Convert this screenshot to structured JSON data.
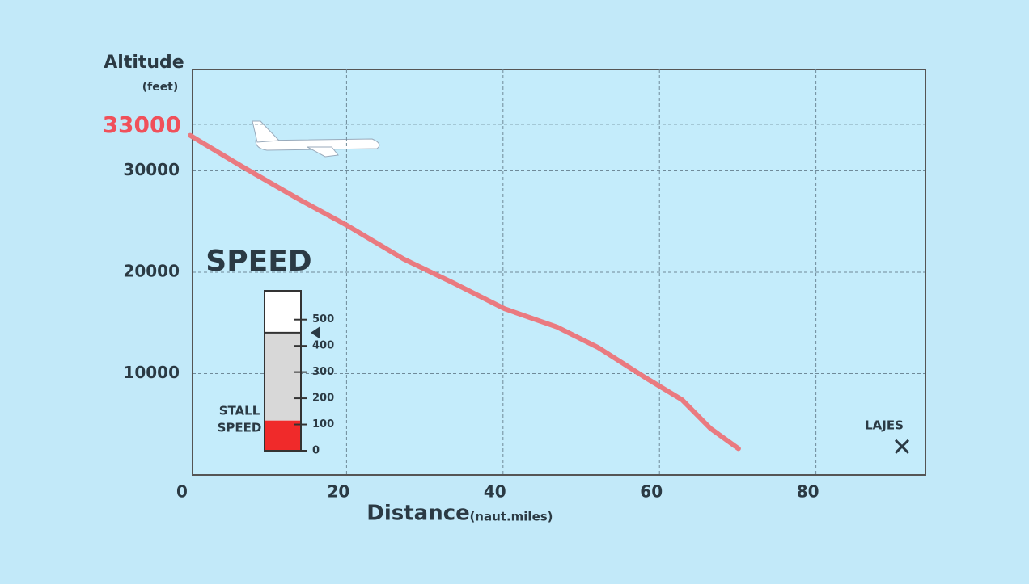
{
  "chart_data": {
    "type": "line",
    "y_label": "Altitude",
    "y_unit": "(feet)",
    "x_label": "Distance",
    "x_unit": "(naut.miles)",
    "x": [
      0,
      6.7,
      13.9,
      20.1,
      27.3,
      33.5,
      40.2,
      46.9,
      52.1,
      58.2,
      62.9,
      66.5,
      70.1
    ],
    "series": [
      {
        "color": "#ea7a80",
        "values": [
          33500,
          30400,
          27200,
          24600,
          21300,
          19000,
          16400,
          14600,
          12600,
          9600,
          7400,
          4600,
          2600
        ]
      }
    ],
    "xlim": [
      0,
      94
    ],
    "xticks": [
      0,
      20,
      40,
      60,
      80
    ],
    "ylim": [
      0,
      40000
    ],
    "yticks": [
      10000,
      20000,
      30000
    ],
    "highlight_ytick": {
      "value": 33000,
      "color": "#f0505a"
    },
    "grid": true,
    "destination": {
      "label": "LAJES",
      "x": 91,
      "y": 2800
    }
  },
  "speed_gauge": {
    "title": "SPEED",
    "stall_label": [
      "STALL",
      "SPEED"
    ],
    "ticks": [
      0,
      100,
      200,
      300,
      400,
      500
    ],
    "lim": [
      0,
      610
    ],
    "stall_speed": 115,
    "speed": 450,
    "stall_color": "#f02a2a"
  }
}
